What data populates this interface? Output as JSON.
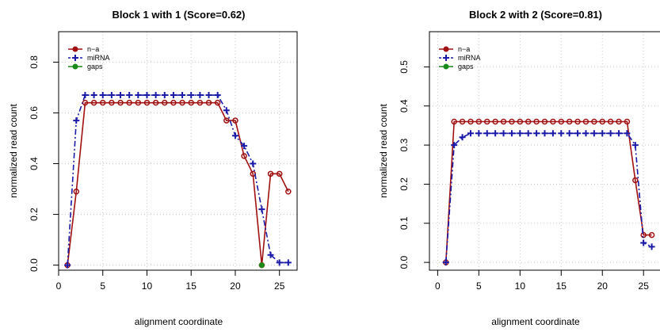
{
  "chart_data": [
    {
      "type": "line",
      "title": "Block 1 with 1 (Score=0.62)",
      "xlabel": "alignment coordinate",
      "ylabel": "normalized read count",
      "xlim": [
        0,
        27
      ],
      "ylim": [
        -0.02,
        0.92
      ],
      "xticks": [
        0,
        5,
        10,
        15,
        20,
        25
      ],
      "yticks": [
        0.0,
        0.2,
        0.4,
        0.6,
        0.8
      ],
      "grid": true,
      "legend_position": "top-left",
      "legend": [
        "n−a",
        "miRNA",
        "gaps"
      ],
      "series": [
        {
          "name": "n−a",
          "color": "#a01010",
          "style": "solid-circle",
          "x": [
            1,
            2,
            3,
            4,
            5,
            6,
            7,
            8,
            9,
            10,
            11,
            12,
            13,
            14,
            15,
            16,
            17,
            18,
            19,
            20,
            21,
            22,
            23,
            24,
            25,
            26
          ],
          "y": [
            0.0,
            0.29,
            0.64,
            0.64,
            0.64,
            0.64,
            0.64,
            0.64,
            0.64,
            0.64,
            0.64,
            0.64,
            0.64,
            0.64,
            0.64,
            0.64,
            0.64,
            0.64,
            0.57,
            0.57,
            0.43,
            0.36,
            0.0,
            0.36,
            0.36,
            0.29
          ]
        },
        {
          "name": "miRNA",
          "color": "#1a1aa8",
          "style": "dashdot-plus",
          "x": [
            1,
            2,
            3,
            4,
            5,
            6,
            7,
            8,
            9,
            10,
            11,
            12,
            13,
            14,
            15,
            16,
            17,
            18,
            19,
            20,
            21,
            22,
            23,
            24,
            25,
            26
          ],
          "y": [
            0.0,
            0.57,
            0.67,
            0.67,
            0.67,
            0.67,
            0.67,
            0.67,
            0.67,
            0.67,
            0.67,
            0.67,
            0.67,
            0.67,
            0.67,
            0.67,
            0.67,
            0.67,
            0.61,
            0.51,
            0.47,
            0.4,
            0.22,
            0.04,
            0.01,
            0.01
          ]
        },
        {
          "name": "gaps",
          "color": "#1a8a1a",
          "style": "point",
          "x": [
            23
          ],
          "y": [
            0.0
          ]
        }
      ]
    },
    {
      "type": "line",
      "title": "Block 2 with 2 (Score=0.81)",
      "xlabel": "alignment coordinate",
      "ylabel": "normalized read count",
      "xlim": [
        -1,
        27
      ],
      "ylim": [
        -0.02,
        0.59
      ],
      "xticks": [
        0,
        5,
        10,
        15,
        20,
        25
      ],
      "yticks": [
        0.0,
        0.1,
        0.2,
        0.3,
        0.4,
        0.5
      ],
      "grid": true,
      "legend_position": "top-left",
      "legend": [
        "n−a",
        "miRNA",
        "gaps"
      ],
      "series": [
        {
          "name": "n−a",
          "color": "#a01010",
          "style": "solid-circle",
          "x": [
            1,
            2,
            3,
            4,
            5,
            6,
            7,
            8,
            9,
            10,
            11,
            12,
            13,
            14,
            15,
            16,
            17,
            18,
            19,
            20,
            21,
            22,
            23,
            24,
            25,
            26
          ],
          "y": [
            0.0,
            0.36,
            0.36,
            0.36,
            0.36,
            0.36,
            0.36,
            0.36,
            0.36,
            0.36,
            0.36,
            0.36,
            0.36,
            0.36,
            0.36,
            0.36,
            0.36,
            0.36,
            0.36,
            0.36,
            0.36,
            0.36,
            0.36,
            0.21,
            0.07,
            0.07
          ]
        },
        {
          "name": "miRNA",
          "color": "#1a1aa8",
          "style": "dashdot-plus",
          "x": [
            1,
            2,
            3,
            4,
            5,
            6,
            7,
            8,
            9,
            10,
            11,
            12,
            13,
            14,
            15,
            16,
            17,
            18,
            19,
            20,
            21,
            22,
            23,
            24,
            25,
            26
          ],
          "y": [
            0.0,
            0.3,
            0.32,
            0.33,
            0.33,
            0.33,
            0.33,
            0.33,
            0.33,
            0.33,
            0.33,
            0.33,
            0.33,
            0.33,
            0.33,
            0.33,
            0.33,
            0.33,
            0.33,
            0.33,
            0.33,
            0.33,
            0.33,
            0.3,
            0.05,
            0.04
          ]
        },
        {
          "name": "gaps",
          "color": "#1a8a1a",
          "style": "point",
          "x": [],
          "y": []
        }
      ]
    }
  ]
}
